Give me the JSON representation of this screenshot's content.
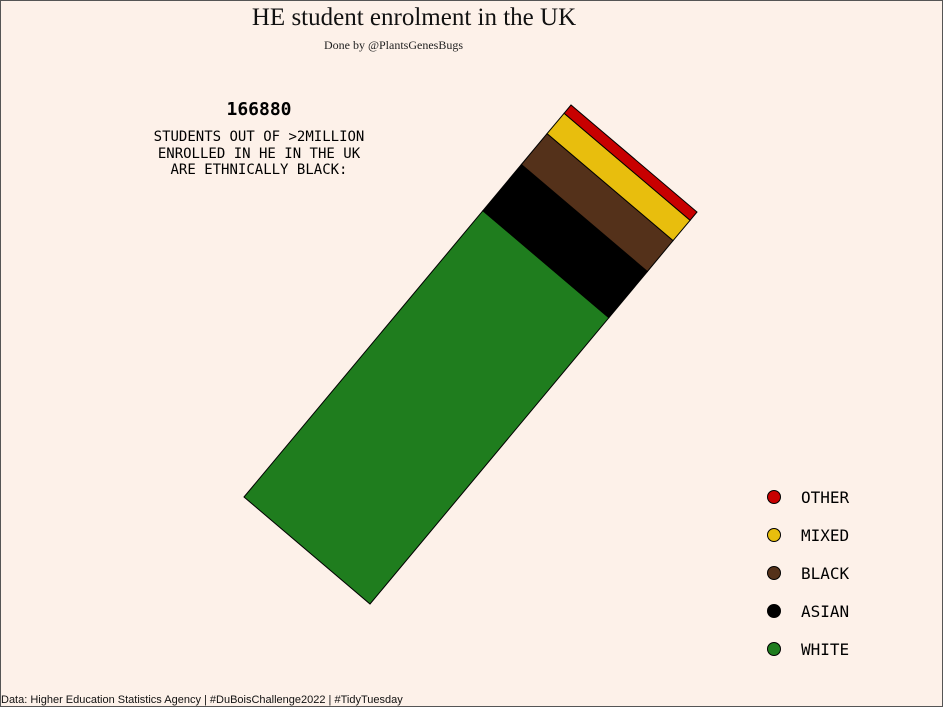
{
  "title": "HE student enrolment in the UK",
  "subtitle": "Done by @PlantsGenesBugs",
  "annotation": {
    "number": "166880",
    "lines": [
      "STUDENTS OUT OF >2MILLION",
      "ENROLLED IN HE IN THE UK",
      "ARE ETHNICALLY BLACK:"
    ]
  },
  "caption": "Data: Higher Education Statistics Agency | #DuBoisChallenge2022 | #TidyTuesday",
  "chart_data": {
    "type": "bar",
    "stacked": true,
    "orientation": "rotated",
    "legend_position": "bottom-right",
    "grid": false,
    "categories": [
      "WHITE",
      "ASIAN",
      "BLACK",
      "MIXED",
      "OTHER"
    ],
    "values": [
      1550000,
      250000,
      166880,
      110000,
      45000
    ],
    "colors": [
      "#1f7d1e",
      "#000000",
      "#54311a",
      "#e8be0d",
      "#c80000"
    ],
    "legend": [
      {
        "label": "OTHER",
        "color": "#c80000"
      },
      {
        "label": "MIXED",
        "color": "#e8be0d"
      },
      {
        "label": "BLACK",
        "color": "#54311a"
      },
      {
        "label": "ASIAN",
        "color": "#000000"
      },
      {
        "label": "WHITE",
        "color": "#1f7d1e"
      }
    ]
  }
}
